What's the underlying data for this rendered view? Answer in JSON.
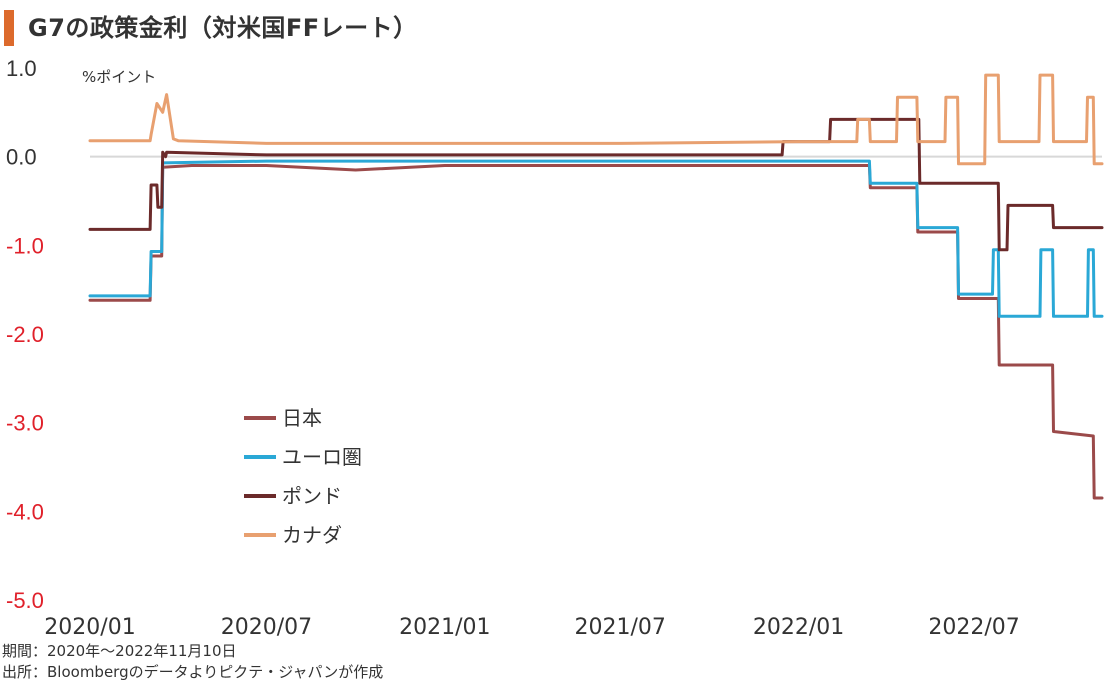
{
  "title": "G7の政策金利（対米国FFレート）",
  "footnotes": {
    "period": "期間：2020年～2022年11月10日",
    "source": "出所：Bloombergのデータよりピクテ・ジャパンが作成"
  },
  "colors": {
    "title_accent": "#dc6a2c",
    "japan": "#9b4a4a",
    "euro": "#2aa8d6",
    "pound": "#6b2a2a",
    "canada": "#e8a070",
    "negative_tick": "#e0202a",
    "positive_tick": "#333333",
    "zero_line": "#d8d8d8"
  },
  "chart_data": {
    "type": "line",
    "title": "G7の政策金利（対米国FFレート）",
    "ylabel": "%ポイント",
    "ylim": [
      -5.0,
      1.0
    ],
    "xlim": [
      "2020-01-01",
      "2022-11-10"
    ],
    "yticks": [
      1.0,
      0.0,
      -1.0,
      -2.0,
      -3.0,
      -4.0,
      -5.0
    ],
    "ytick_labels": [
      "1.0",
      "0.0",
      "-1.0",
      "-2.0",
      "-3.0",
      "-4.0",
      "-5.0"
    ],
    "xticks": [
      "2020-01-01",
      "2020-07-01",
      "2021-01-01",
      "2021-07-01",
      "2022-01-01",
      "2022-07-01"
    ],
    "xtick_labels": [
      "2020/01",
      "2020/07",
      "2021/01",
      "2021/07",
      "2022/01",
      "2022/07"
    ],
    "grid": false,
    "legend_position": "center-left",
    "series": [
      {
        "name": "日本",
        "color": "#9b4a4a",
        "points": [
          [
            "2020-01-01",
            -1.62
          ],
          [
            "2020-03-03",
            -1.62
          ],
          [
            "2020-03-04",
            -1.12
          ],
          [
            "2020-03-15",
            -1.12
          ],
          [
            "2020-03-16",
            -0.12
          ],
          [
            "2020-04-15",
            -0.1
          ],
          [
            "2020-07-01",
            -0.1
          ],
          [
            "2020-10-01",
            -0.15
          ],
          [
            "2021-01-01",
            -0.1
          ],
          [
            "2021-07-01",
            -0.1
          ],
          [
            "2022-01-01",
            -0.1
          ],
          [
            "2022-03-15",
            -0.1
          ],
          [
            "2022-03-16",
            -0.35
          ],
          [
            "2022-05-03",
            -0.35
          ],
          [
            "2022-05-04",
            -0.85
          ],
          [
            "2022-06-14",
            -0.85
          ],
          [
            "2022-06-15",
            -1.6
          ],
          [
            "2022-07-26",
            -1.6
          ],
          [
            "2022-07-27",
            -2.35
          ],
          [
            "2022-09-20",
            -2.35
          ],
          [
            "2022-09-21",
            -3.1
          ],
          [
            "2022-11-01",
            -3.15
          ],
          [
            "2022-11-02",
            -3.85
          ],
          [
            "2022-11-10",
            -3.85
          ]
        ]
      },
      {
        "name": "ユーロ圏",
        "color": "#2aa8d6",
        "points": [
          [
            "2020-01-01",
            -1.57
          ],
          [
            "2020-03-03",
            -1.57
          ],
          [
            "2020-03-04",
            -1.07
          ],
          [
            "2020-03-15",
            -1.07
          ],
          [
            "2020-03-16",
            -0.07
          ],
          [
            "2020-07-01",
            -0.05
          ],
          [
            "2021-01-01",
            -0.05
          ],
          [
            "2021-07-01",
            -0.05
          ],
          [
            "2022-01-01",
            -0.05
          ],
          [
            "2022-03-15",
            -0.05
          ],
          [
            "2022-03-16",
            -0.3
          ],
          [
            "2022-05-03",
            -0.3
          ],
          [
            "2022-05-04",
            -0.8
          ],
          [
            "2022-06-14",
            -0.8
          ],
          [
            "2022-06-15",
            -1.55
          ],
          [
            "2022-07-20",
            -1.55
          ],
          [
            "2022-07-21",
            -1.05
          ],
          [
            "2022-07-26",
            -1.05
          ],
          [
            "2022-07-27",
            -1.8
          ],
          [
            "2022-09-07",
            -1.8
          ],
          [
            "2022-09-08",
            -1.05
          ],
          [
            "2022-09-20",
            -1.05
          ],
          [
            "2022-09-21",
            -1.8
          ],
          [
            "2022-10-26",
            -1.8
          ],
          [
            "2022-10-27",
            -1.05
          ],
          [
            "2022-11-01",
            -1.05
          ],
          [
            "2022-11-02",
            -1.8
          ],
          [
            "2022-11-10",
            -1.8
          ]
        ]
      },
      {
        "name": "ポンド",
        "color": "#6b2a2a",
        "points": [
          [
            "2020-01-01",
            -0.82
          ],
          [
            "2020-03-03",
            -0.82
          ],
          [
            "2020-03-04",
            -0.32
          ],
          [
            "2020-03-10",
            -0.32
          ],
          [
            "2020-03-11",
            -0.57
          ],
          [
            "2020-03-15",
            -0.57
          ],
          [
            "2020-03-16",
            0.05
          ],
          [
            "2020-03-19",
            0.0
          ],
          [
            "2020-03-20",
            0.05
          ],
          [
            "2020-07-01",
            0.02
          ],
          [
            "2021-01-01",
            0.02
          ],
          [
            "2021-07-01",
            0.02
          ],
          [
            "2021-12-15",
            0.02
          ],
          [
            "2021-12-16",
            0.17
          ],
          [
            "2022-02-02",
            0.17
          ],
          [
            "2022-02-03",
            0.42
          ],
          [
            "2022-03-15",
            0.42
          ],
          [
            "2022-03-16",
            0.42
          ],
          [
            "2022-05-05",
            0.42
          ],
          [
            "2022-05-06",
            -0.3
          ],
          [
            "2022-06-14",
            -0.3
          ],
          [
            "2022-06-15",
            -0.3
          ],
          [
            "2022-07-26",
            -0.3
          ],
          [
            "2022-07-27",
            -1.05
          ],
          [
            "2022-08-04",
            -1.05
          ],
          [
            "2022-08-05",
            -0.55
          ],
          [
            "2022-09-20",
            -0.55
          ],
          [
            "2022-09-21",
            -0.8
          ],
          [
            "2022-11-10",
            -0.8
          ]
        ]
      },
      {
        "name": "カナダ",
        "color": "#e8a070",
        "points": [
          [
            "2020-01-01",
            0.18
          ],
          [
            "2020-03-03",
            0.18
          ],
          [
            "2020-03-04",
            0.25
          ],
          [
            "2020-03-10",
            0.6
          ],
          [
            "2020-03-16",
            0.5
          ],
          [
            "2020-03-20",
            0.7
          ],
          [
            "2020-03-27",
            0.2
          ],
          [
            "2020-04-01",
            0.18
          ],
          [
            "2020-07-01",
            0.15
          ],
          [
            "2021-01-01",
            0.15
          ],
          [
            "2021-07-01",
            0.15
          ],
          [
            "2022-01-01",
            0.17
          ],
          [
            "2022-03-02",
            0.17
          ],
          [
            "2022-03-03",
            0.42
          ],
          [
            "2022-03-15",
            0.42
          ],
          [
            "2022-03-16",
            0.17
          ],
          [
            "2022-04-12",
            0.17
          ],
          [
            "2022-04-13",
            0.67
          ],
          [
            "2022-05-03",
            0.67
          ],
          [
            "2022-05-04",
            0.17
          ],
          [
            "2022-06-01",
            0.17
          ],
          [
            "2022-06-02",
            0.67
          ],
          [
            "2022-06-14",
            0.67
          ],
          [
            "2022-06-15",
            -0.08
          ],
          [
            "2022-07-12",
            -0.08
          ],
          [
            "2022-07-13",
            0.92
          ],
          [
            "2022-07-26",
            0.92
          ],
          [
            "2022-07-27",
            0.17
          ],
          [
            "2022-09-06",
            0.17
          ],
          [
            "2022-09-07",
            0.92
          ],
          [
            "2022-09-20",
            0.92
          ],
          [
            "2022-09-21",
            0.17
          ],
          [
            "2022-10-25",
            0.17
          ],
          [
            "2022-10-26",
            0.67
          ],
          [
            "2022-11-01",
            0.67
          ],
          [
            "2022-11-02",
            -0.08
          ],
          [
            "2022-11-10",
            -0.08
          ]
        ]
      }
    ]
  }
}
